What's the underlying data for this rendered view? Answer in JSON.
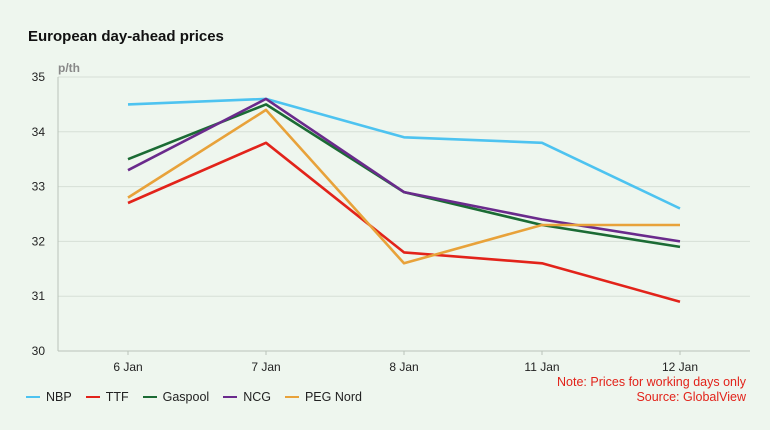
{
  "chart_data": {
    "type": "line",
    "title": "European day-ahead prices",
    "ylabel": "p/th",
    "xlabel": "",
    "categories": [
      "6 Jan",
      "7 Jan",
      "8 Jan",
      "11 Jan",
      "12 Jan"
    ],
    "ylim": [
      30,
      35
    ],
    "yticks": [
      30,
      31,
      32,
      33,
      34,
      35
    ],
    "grid": true,
    "legend_position": "bottom-left",
    "series": [
      {
        "name": "NBP",
        "color": "#4dc3f0",
        "values": [
          34.5,
          34.6,
          33.9,
          33.8,
          32.6
        ]
      },
      {
        "name": "TTF",
        "color": "#e2231a",
        "values": [
          32.7,
          33.8,
          31.8,
          31.6,
          30.9
        ]
      },
      {
        "name": "Gaspool",
        "color": "#1b6b34",
        "values": [
          33.5,
          34.5,
          32.9,
          32.3,
          31.9
        ]
      },
      {
        "name": "NCG",
        "color": "#6a2a8c",
        "values": [
          33.3,
          34.6,
          32.9,
          32.4,
          32.0
        ]
      },
      {
        "name": "PEG Nord",
        "color": "#e8a23a",
        "values": [
          32.8,
          34.4,
          31.6,
          32.3,
          32.3
        ]
      }
    ]
  },
  "notes": {
    "line1": "Note: Prices for working days only",
    "line2": "Source: GlobalView"
  }
}
